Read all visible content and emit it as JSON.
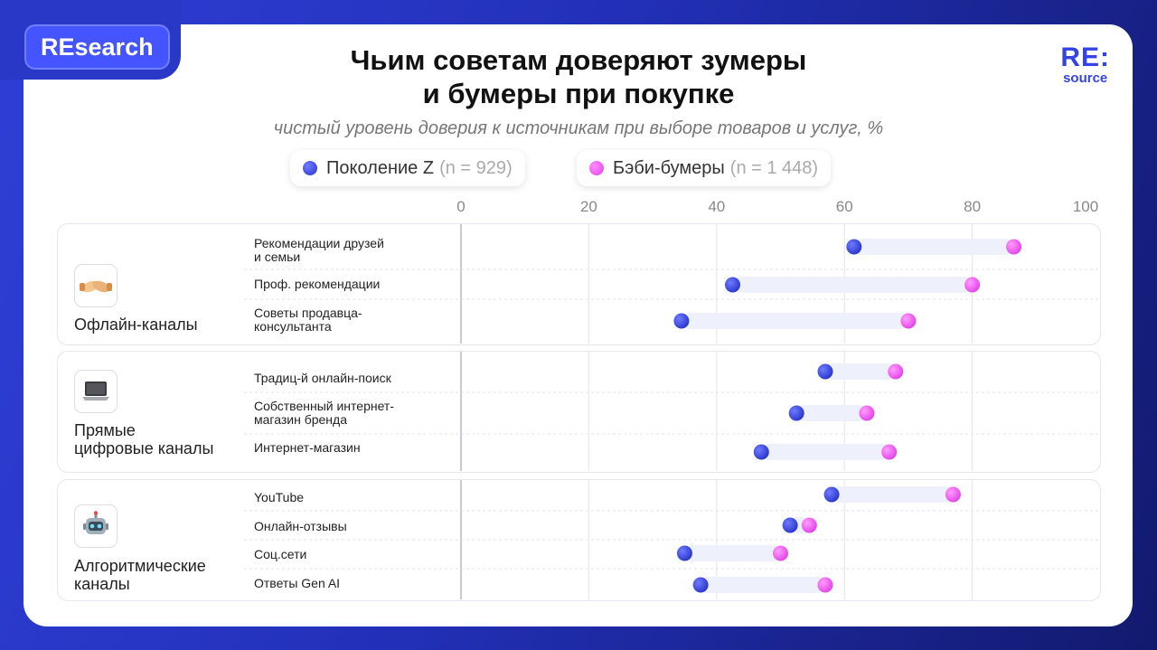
{
  "badge": "REsearch",
  "logo": {
    "main": "RE:",
    "sub": "source"
  },
  "title_line1": "Чьим советам доверяют зумеры",
  "title_line2": "и бумеры при покупке",
  "subtitle": "чистый уровень доверия к источникам при выборе товаров и услуг, %",
  "legend": [
    {
      "name": "Поколение Z",
      "n": "(n = 929)",
      "color": "#3442e0"
    },
    {
      "name": "Бэби-бумеры",
      "n": "(n = 1 448)",
      "color": "#ef4df0"
    }
  ],
  "groups": [
    {
      "label_lines": [
        "Офлайн-каналы"
      ],
      "icon": "handshake-icon"
    },
    {
      "label_lines": [
        "Прямые",
        "цифровые каналы"
      ],
      "icon": "laptop-icon"
    },
    {
      "label_lines": [
        "Алгоритмические",
        "каналы"
      ],
      "icon": "robot-icon"
    }
  ],
  "row_labels": [
    [
      "Рекомендации друзей",
      "и семьи"
    ],
    [
      "Проф. рекомендации"
    ],
    [
      "Советы продавца-",
      "консультанта"
    ],
    [
      "Традиц-й онлайн-поиск"
    ],
    [
      "Собственный интернет-",
      "магазин бренда"
    ],
    [
      "Интернет-магазин"
    ],
    [
      "YouTube"
    ],
    [
      "Онлайн-отзывы"
    ],
    [
      "Соц.сети"
    ],
    [
      "Ответы Gen AI"
    ]
  ],
  "chart_data": {
    "type": "dumbbell",
    "xlim": [
      0,
      100
    ],
    "ticks": [
      "0",
      "20",
      "40",
      "60",
      "80",
      "100"
    ],
    "categories": [
      "Рекомендации друзей и семьи",
      "Проф. рекомендации",
      "Советы продавца-консультанта",
      "Традиц-й онлайн-поиск",
      "Собственный интернет-магазин бренда",
      "Интернет-магазин",
      "YouTube",
      "Онлайн-отзывы",
      "Соц.сети",
      "Ответы Gen AI"
    ],
    "series": [
      {
        "name": "Поколение Z",
        "values": [
          61.5,
          42.5,
          34.5,
          57,
          52.5,
          47,
          58,
          51.5,
          35,
          37.5
        ]
      },
      {
        "name": "Бэби-бумеры",
        "values": [
          86.5,
          80,
          70,
          68,
          63.5,
          67,
          77,
          54.5,
          50,
          57
        ]
      }
    ],
    "grid": true
  }
}
